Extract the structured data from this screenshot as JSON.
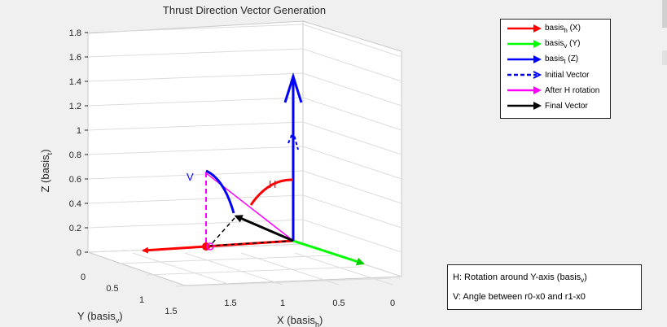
{
  "chart_data": {
    "type": "line",
    "projection": "3d",
    "title": "Thrust Direction Vector Generation",
    "xlabel": "X (basis_h)",
    "ylabel": "Y (basis_v)",
    "zlabel": "Z (basis_t)",
    "xlim": [
      0,
      2
    ],
    "ylim": [
      0,
      2
    ],
    "zlim": [
      -0.1,
      1.8
    ],
    "x_ticks": [
      "0",
      "0.5",
      "1",
      "1.5"
    ],
    "y_ticks": [
      "0",
      "0.5",
      "1",
      "1.5"
    ],
    "z_ticks": [
      "0",
      "0.2",
      "0.4",
      "0.6",
      "0.8",
      "1",
      "1.2",
      "1.4",
      "1.6",
      "1.8"
    ],
    "grid": true,
    "series": [
      {
        "name": "basis_h (X)",
        "color": "#ff0000",
        "from": [
          1,
          1,
          0
        ],
        "to": [
          2,
          1,
          0
        ]
      },
      {
        "name": "basis_v (Y)",
        "color": "#00ff00",
        "from": [
          1,
          1,
          0
        ],
        "to": [
          1,
          0,
          0
        ]
      },
      {
        "name": "basis_t (Z)",
        "color": "#0000ff",
        "from": [
          1,
          1,
          0
        ],
        "to": [
          1,
          1,
          1.45
        ]
      },
      {
        "name": "Initial Vector",
        "color": "#0000ff",
        "style": "dashed",
        "from": [
          1,
          1,
          0
        ],
        "to": [
          1,
          1,
          0.9
        ]
      },
      {
        "name": "After H rotation",
        "color": "#ff00ff",
        "from": [
          1,
          1,
          0
        ],
        "to": [
          1.6,
          1.15,
          0.65
        ]
      },
      {
        "name": "Final Vector",
        "color": "#000000",
        "from": [
          1,
          1,
          0
        ],
        "to": [
          1.5,
          1.2,
          0.25
        ]
      }
    ],
    "annotations": [
      {
        "label": "H",
        "color": "#ff0000",
        "text": "H"
      },
      {
        "label": "V",
        "color": "#0000ff",
        "text": "V"
      }
    ],
    "legend": {
      "position": "top-right",
      "items": [
        {
          "main": "basis",
          "sub": "h",
          "suffix": " (X)",
          "color": "#ff0000",
          "style": "arrow"
        },
        {
          "main": "basis",
          "sub": "v",
          "suffix": " (Y)",
          "color": "#00ff00",
          "style": "arrow"
        },
        {
          "main": "basis",
          "sub": "t",
          "suffix": " (Z)",
          "color": "#0000ff",
          "style": "arrow"
        },
        {
          "main": "Initial Vector",
          "sub": "",
          "suffix": "",
          "color": "#0000ff",
          "style": "dashed"
        },
        {
          "main": "After H rotation",
          "sub": "",
          "suffix": "",
          "color": "#ff00ff",
          "style": "arrow"
        },
        {
          "main": "Final Vector",
          "sub": "",
          "suffix": "",
          "color": "#000000",
          "style": "arrow"
        }
      ]
    },
    "info_box": {
      "line1_pre": "H: Rotation around Y-axis (basis",
      "line1_sub": "v",
      "line1_post": ")",
      "line2": "V: Angle between r0-x0 and r1-x0"
    },
    "axis_label_parts": {
      "x": {
        "main": "X (basis",
        "sub": "h",
        "post": ")"
      },
      "y": {
        "main": "Y (basis",
        "sub": "v",
        "post": ")"
      },
      "z": {
        "main": "Z (basis",
        "sub": "t",
        "post": ")"
      }
    }
  }
}
